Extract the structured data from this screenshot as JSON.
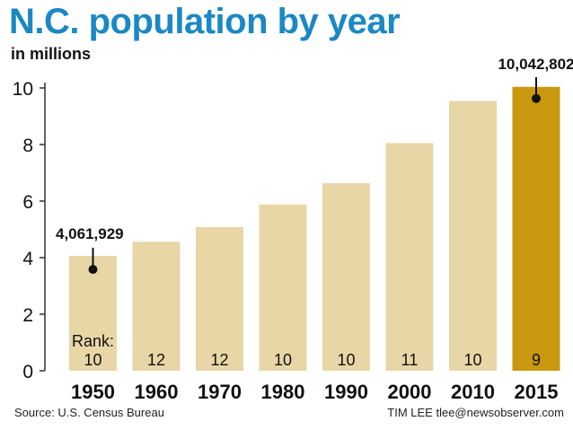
{
  "title": "N.C. population by year",
  "subtitle": "in millions",
  "source": "Source: U.S. Census Bureau",
  "credit": "TIM LEE tlee@newsobserver.com",
  "colors": {
    "title": "#1b88c4",
    "bar": "#e8d6a6",
    "highlight_bar": "#c9980f",
    "axis": "#333333"
  },
  "chart_data": {
    "type": "bar",
    "title": "N.C. population by year",
    "subtitle": "in millions",
    "categories": [
      "1950",
      "1960",
      "1970",
      "1980",
      "1990",
      "2000",
      "2010",
      "2015"
    ],
    "values": [
      4.06,
      4.56,
      5.08,
      5.88,
      6.63,
      8.05,
      9.54,
      10.04
    ],
    "ylim": [
      0,
      10
    ],
    "yticks": [
      "0",
      "2",
      "4",
      "6",
      "8",
      "10"
    ],
    "ytick_values": [
      0,
      2,
      4,
      6,
      8,
      10
    ],
    "highlight_index": 7,
    "rank_title": "Rank:",
    "ranks": [
      "10",
      "12",
      "12",
      "10",
      "10",
      "11",
      "10",
      "9"
    ],
    "annotations": [
      {
        "index": 0,
        "text": "4,061,929"
      },
      {
        "index": 7,
        "text": "10,042,802"
      }
    ],
    "grid": false,
    "legend": "none"
  }
}
